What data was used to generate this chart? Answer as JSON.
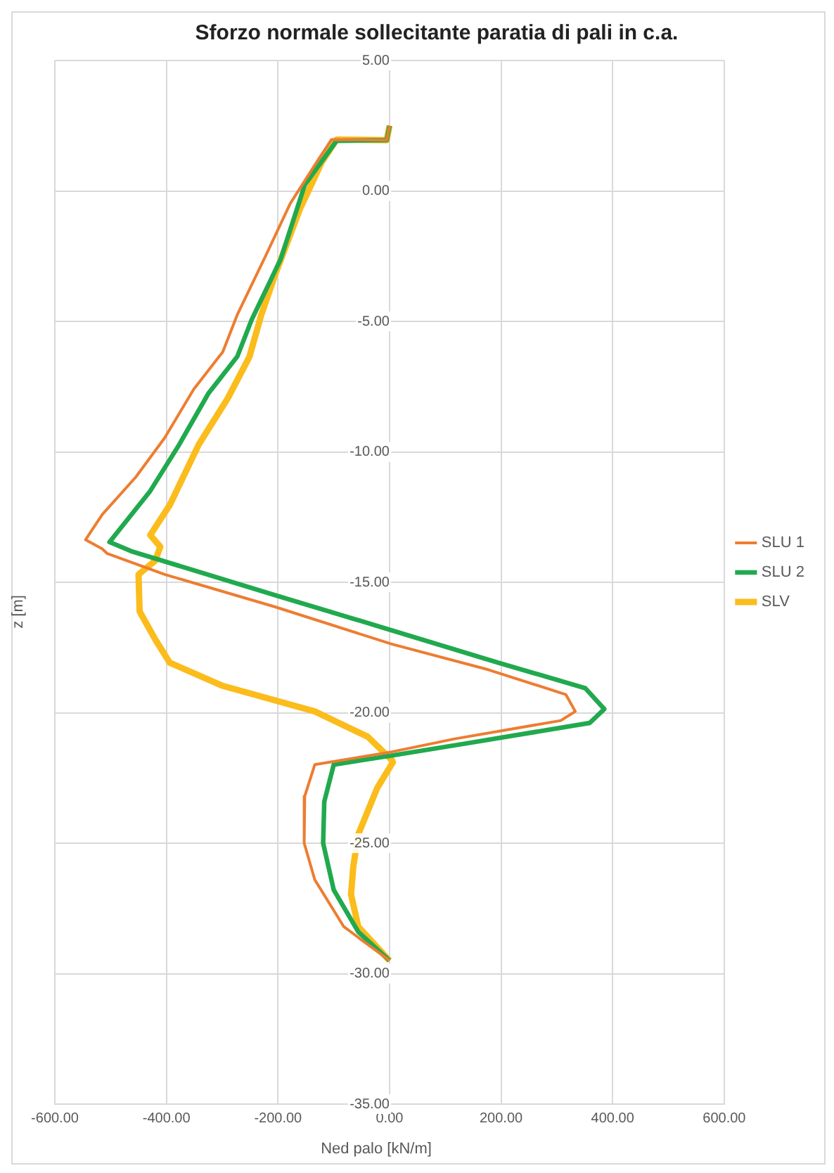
{
  "chart_data": {
    "type": "line",
    "title": "Sforzo normale sollecitante paratia di pali in c.a.",
    "xlabel": "Ned palo [kN/m]",
    "ylabel": "z [m]",
    "xlim": [
      -600,
      600
    ],
    "xticks": [
      {
        "value": -600,
        "label": "-600.00"
      },
      {
        "value": -400,
        "label": "-400.00"
      },
      {
        "value": -200,
        "label": "-200.00"
      },
      {
        "value": 0,
        "label": "0.00"
      },
      {
        "value": 200,
        "label": "200.00"
      },
      {
        "value": 400,
        "label": "400.00"
      },
      {
        "value": 600,
        "label": "600.00"
      }
    ],
    "ylim": [
      -35,
      5
    ],
    "yticks": [
      {
        "value": 5,
        "label": "5.00"
      },
      {
        "value": 0,
        "label": "0.00"
      },
      {
        "value": -5,
        "label": "-5.00"
      },
      {
        "value": -10,
        "label": "-10.00"
      },
      {
        "value": -15,
        "label": "-15.00"
      },
      {
        "value": -20,
        "label": "-20.00"
      },
      {
        "value": -25,
        "label": "-25.00"
      },
      {
        "value": -30,
        "label": "-30.00"
      },
      {
        "value": -35,
        "label": "-35.00"
      }
    ],
    "grid": true,
    "legend": "right",
    "marker": "none",
    "line_style": "solid",
    "series": [
      {
        "name": "SLU 1",
        "color": "#ed7d31",
        "x": [
          0,
          -5,
          -104,
          -130,
          -178,
          -221,
          -273,
          -299,
          -351,
          -403,
          -455,
          -515,
          -545,
          -515,
          -506,
          -403,
          -204,
          4,
          177,
          316,
          333,
          307,
          117,
          4,
          -134,
          -152,
          -153,
          -134,
          -82,
          0
        ],
        "values": [
          2.5,
          1.95,
          1.97,
          1.12,
          -0.48,
          -2.44,
          -4.75,
          -6.17,
          -7.6,
          -9.46,
          -10.97,
          -12.4,
          -13.37,
          -13.72,
          -13.9,
          -14.7,
          -15.95,
          -17.37,
          -18.35,
          -19.3,
          -19.95,
          -20.3,
          -21.0,
          -21.5,
          -21.99,
          -23.2,
          -25.0,
          -26.4,
          -28.2,
          -29.5
        ]
      },
      {
        "name": "SLU 2",
        "color": "#21a94e",
        "x": [
          0,
          -5,
          -95,
          -152,
          -195,
          -247,
          -273,
          -325,
          -377,
          -429,
          -502,
          -463,
          -204,
          4,
          195,
          351,
          385,
          359,
          134,
          4,
          -100,
          -117,
          -119,
          -100,
          -56,
          0
        ],
        "values": [
          2.5,
          1.95,
          1.92,
          0.23,
          -2.61,
          -4.93,
          -6.35,
          -7.77,
          -9.72,
          -11.5,
          -13.46,
          -13.81,
          -15.5,
          -16.84,
          -18.08,
          -19.06,
          -19.86,
          -20.39,
          -21.19,
          -21.64,
          -21.99,
          -23.41,
          -25.0,
          -26.79,
          -28.4,
          -29.5
        ]
      },
      {
        "name": "SLV",
        "color": "#fbbc1c",
        "x": [
          0,
          -5,
          -95,
          -121,
          -160,
          -204,
          -230,
          -251,
          -290,
          -342,
          -394,
          -429,
          -411,
          -420,
          -450,
          -448,
          -420,
          -394,
          -299,
          -134,
          -39,
          4,
          6,
          -22,
          -56,
          -65,
          -69,
          -56,
          0
        ],
        "values": [
          2.5,
          1.95,
          1.97,
          1.12,
          -0.66,
          -3.15,
          -4.75,
          -6.35,
          -7.95,
          -9.72,
          -12.04,
          -13.19,
          -13.64,
          -14.17,
          -14.7,
          -16.12,
          -17.19,
          -18.08,
          -18.97,
          -19.95,
          -20.92,
          -21.81,
          -21.9,
          -22.88,
          -24.66,
          -25.9,
          -26.97,
          -28.2,
          -29.5
        ]
      }
    ]
  }
}
